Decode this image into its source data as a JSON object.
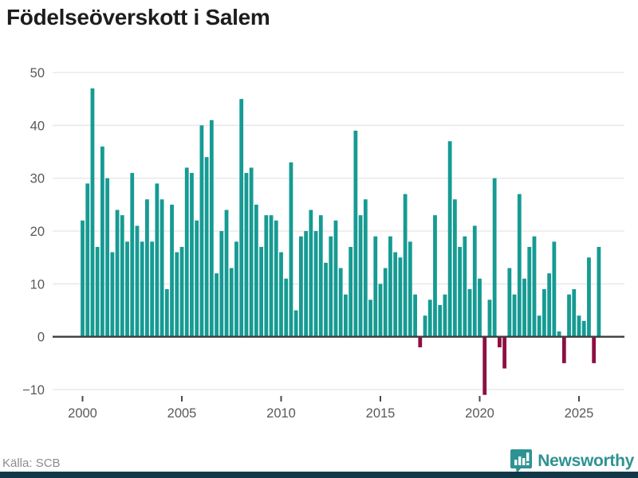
{
  "title": "Födelseöverskott i Salem",
  "source": {
    "text": "Källa: SCB"
  },
  "brand": {
    "name": "Newsworthy",
    "icon": "newsworthy-pin-barchart-icon"
  },
  "colors": {
    "positive_bar": "#169b93",
    "negative_bar": "#8e1043",
    "gridline": "#e8e8e8",
    "zero_line": "#3d3d3d",
    "tick_text": "#595959",
    "title_text": "#1d1d1d",
    "source_text": "#8c8c8c",
    "brand_teal": "#2f9292",
    "bottom_strip": "#123847"
  },
  "chart_data": {
    "type": "bar",
    "title": "Födelseöverskott i Salem",
    "frequency": "quarterly",
    "x_start": "2000-Q1",
    "x_end": "2026-Q1",
    "values": [
      22,
      29,
      47,
      17,
      36,
      30,
      16,
      24,
      23,
      18,
      31,
      21,
      18,
      26,
      18,
      29,
      26,
      9,
      25,
      16,
      17,
      32,
      31,
      22,
      40,
      34,
      41,
      12,
      20,
      24,
      13,
      18,
      45,
      31,
      32,
      25,
      17,
      23,
      23,
      22,
      16,
      11,
      33,
      5,
      19,
      20,
      24,
      20,
      23,
      14,
      19,
      22,
      13,
      8,
      17,
      39,
      23,
      26,
      7,
      19,
      10,
      13,
      19,
      16,
      15,
      27,
      18,
      8,
      -2,
      4,
      7,
      23,
      6,
      8,
      37,
      26,
      17,
      19,
      9,
      21,
      11,
      -11,
      7,
      30,
      -2,
      -6,
      13,
      8,
      27,
      11,
      17,
      19,
      4,
      9,
      12,
      18,
      1,
      -5,
      8,
      9,
      4,
      3,
      15,
      -5,
      17
    ],
    "x_tick_labels": [
      "2000",
      "2005",
      "2010",
      "2015",
      "2020",
      "2025"
    ],
    "y_ticks": [
      -10,
      0,
      10,
      20,
      30,
      40,
      50
    ],
    "ylim": [
      -13,
      52
    ],
    "grid": true,
    "legend": "none"
  }
}
